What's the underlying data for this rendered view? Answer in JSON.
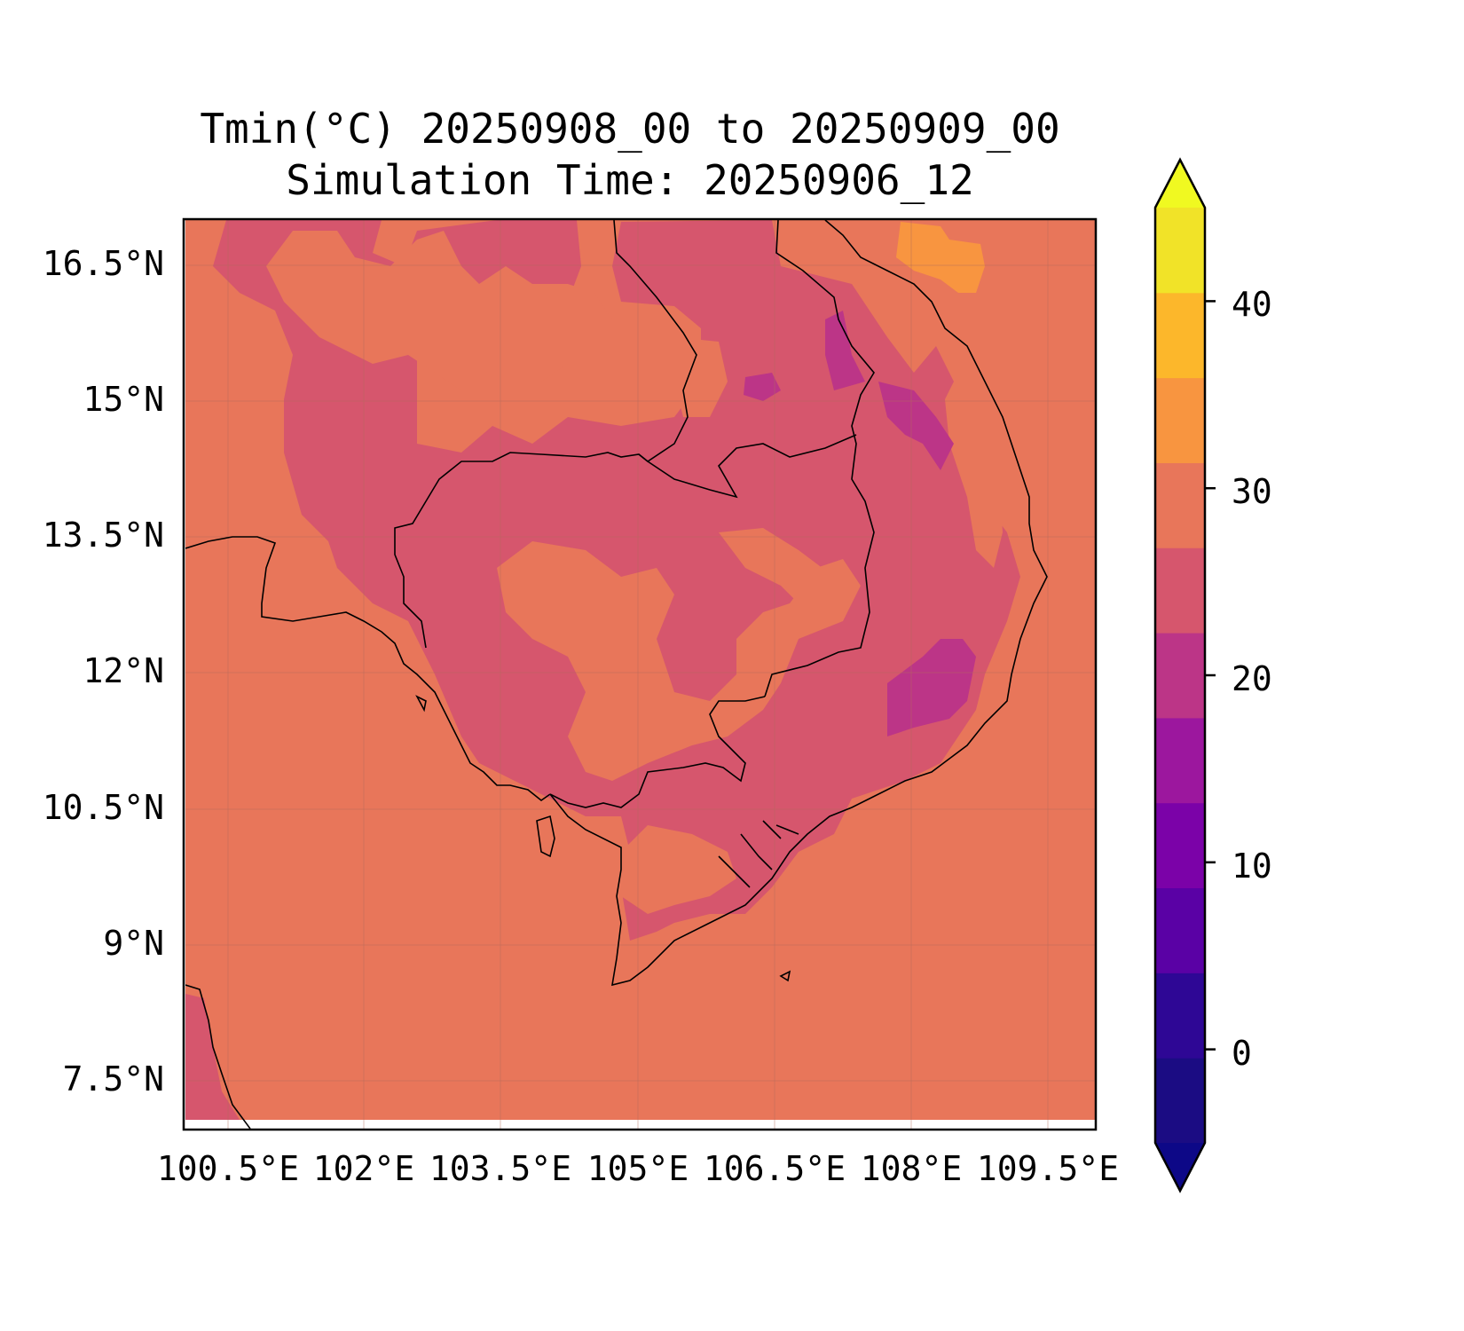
{
  "title": "Tmin(°C) 20250908_00 to 20250909_00",
  "subtitle": "Simulation Time: 20250906_12",
  "map": {
    "region": "Cambodia and surrounding Southeast Asia",
    "lon_range": [
      100.0,
      110.0
    ],
    "lat_range": [
      6.8,
      16.8
    ],
    "lat_ticks": [
      "16.5°N",
      "15°N",
      "13.5°N",
      "12°N",
      "10.5°N",
      "9°N",
      "7.5°N"
    ],
    "lon_ticks": [
      "100.5°E",
      "102°E",
      "103.5°E",
      "105°E",
      "106.5°E",
      "108°E",
      "109.5°E"
    ],
    "grid": true,
    "background_field_color": "#e8765a",
    "coastline_color": "#000000"
  },
  "colorbar": {
    "ticks": [
      "40",
      "30",
      "20",
      "10",
      "0"
    ],
    "levels": [
      -5,
      0,
      5,
      10,
      15,
      20,
      25,
      30,
      35,
      40,
      45
    ],
    "colors": [
      "#1b0c83",
      "#2e0795",
      "#5a01a5",
      "#7b02a8",
      "#9c179e",
      "#bc3587",
      "#d6566d",
      "#e8765a",
      "#f89540",
      "#fcb72b",
      "#f1e328"
    ],
    "extend": "both",
    "extend_low_color": "#0d0887",
    "extend_high_color": "#f0f921"
  }
}
